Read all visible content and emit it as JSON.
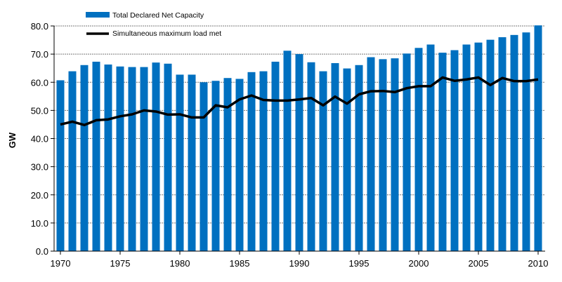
{
  "chart_data": {
    "type": "bar",
    "title": "",
    "xlabel": "",
    "ylabel": "GW",
    "ylim": [
      0,
      80
    ],
    "yticks": [
      "0.0",
      "10.0",
      "20.0",
      "30.0",
      "40.0",
      "50.0",
      "60.0",
      "70.0",
      "80.0"
    ],
    "xticks": [
      "1970",
      "1975",
      "1980",
      "1985",
      "1990",
      "1995",
      "2000",
      "2005",
      "2010"
    ],
    "grid": "horizontal dotted",
    "legend": "top-left",
    "x": [
      1970,
      1971,
      1972,
      1973,
      1974,
      1975,
      1976,
      1977,
      1978,
      1979,
      1980,
      1981,
      1982,
      1983,
      1984,
      1985,
      1986,
      1987,
      1988,
      1989,
      1990,
      1991,
      1992,
      1993,
      1994,
      1995,
      1996,
      1997,
      1998,
      1999,
      2000,
      2001,
      2002,
      2003,
      2004,
      2005,
      2006,
      2007,
      2008,
      2009,
      2010
    ],
    "series": [
      {
        "name": "Total Declared Net Capacity",
        "type": "bar",
        "color": "#0070C0",
        "values": [
          60.7,
          63.9,
          66.1,
          67.3,
          66.3,
          65.6,
          65.4,
          65.4,
          67.0,
          66.6,
          62.7,
          62.7,
          60.0,
          60.5,
          61.5,
          61.2,
          63.6,
          63.9,
          67.3,
          71.2,
          70.0,
          67.1,
          63.9,
          66.8,
          64.9,
          66.1,
          68.9,
          68.2,
          68.5,
          70.2,
          72.2,
          73.4,
          70.5,
          71.4,
          73.4,
          74.1,
          75.1,
          76.0,
          76.8,
          77.7,
          80.2
        ]
      },
      {
        "name": "Simultaneous maximum load met",
        "type": "line",
        "color": "#000000",
        "values": [
          45.0,
          46.0,
          44.8,
          46.5,
          46.8,
          47.9,
          48.6,
          50.0,
          49.6,
          48.5,
          48.6,
          47.5,
          47.5,
          51.8,
          51.1,
          53.9,
          55.3,
          53.7,
          53.5,
          53.5,
          53.9,
          54.4,
          51.8,
          54.9,
          52.4,
          55.7,
          56.8,
          56.9,
          56.5,
          57.9,
          58.6,
          58.6,
          61.7,
          60.5,
          61.0,
          61.7,
          59.0,
          61.5,
          60.4,
          60.4,
          61.0
        ]
      }
    ]
  }
}
